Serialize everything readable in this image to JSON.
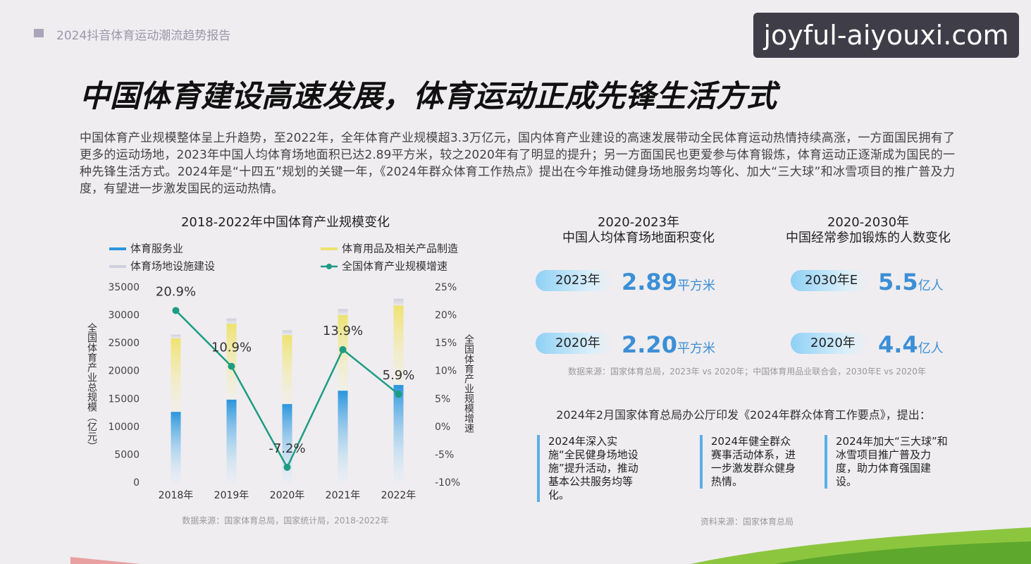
{
  "header": {
    "report": "2024抖音体育运动潮流趋势报告",
    "watermark": "joyful-aiyouxi.com",
    "title": "中国体育建设高速发展，体育运动正成先锋生活方式",
    "paragraph": "中国体育产业规模整体呈上升趋势，至2022年，全年体育产业规模超3.3万亿元，国内体育产业建设的高速发展带动全民体育运动热情持续高涨，一方面国民拥有了更多的运动场地，2023年中国人均体育场地面积已达2.89平方米，较之2020年有了明显的提升；另一方面国民也更爱参与体育锻炼，体育运动正逐渐成为国民的一种先锋生活方式。2024年是“十四五”规划的关键一年，《2024年群众体育工作热点》提出在今年推动健身场地服务均等化、加大“三大球”和冰雪项目的推广普及力度，有望进一步激发国民的运动热情。"
  },
  "chart_data": {
    "type": "bar",
    "title": "2018-2022年中国体育产业规模变化",
    "categories": [
      "2018年",
      "2019年",
      "2020年",
      "2021年",
      "2022年"
    ],
    "series": [
      {
        "name": "体育服务业",
        "color": "#2a95dd",
        "values": [
          12732,
          14930,
          14136,
          16527,
          17555
        ]
      },
      {
        "name": "体育用品及相关产品制造",
        "color": "#eee270",
        "values": [
          13201,
          13614,
          12372,
          13585,
          14260
        ]
      },
      {
        "name": "体育场地设施建设",
        "color": "#cfd0dd",
        "values": [
          646,
          939,
          864,
          1062,
          1193
        ]
      },
      {
        "name": "全国体育产业规模增速",
        "color": "#1e9c83",
        "type": "line",
        "axis": "y2",
        "values": [
          20.9,
          10.9,
          -7.2,
          13.9,
          5.9
        ],
        "value_labels": [
          "20.9%",
          "10.9%",
          "-7.2%",
          "13.9%",
          "5.9%"
        ]
      }
    ],
    "ylabel": "全国体育产业总规模（亿元）",
    "y2label": "全国体育产业规模增速",
    "ylim": [
      0,
      35000
    ],
    "yticks": [
      0,
      5000,
      10000,
      15000,
      20000,
      25000,
      30000,
      35000
    ],
    "y2lim": [
      -10,
      25
    ],
    "y2ticks": [
      {
        "value": -10,
        "label": "-10%"
      },
      {
        "value": -5,
        "label": "-5%"
      },
      {
        "value": 0,
        "label": "0%"
      },
      {
        "value": 5,
        "label": "5%"
      },
      {
        "value": 10,
        "label": "10%"
      },
      {
        "value": 15,
        "label": "15%"
      },
      {
        "value": 20,
        "label": "20%"
      },
      {
        "value": 25,
        "label": "25%"
      }
    ],
    "source": "数据来源：国家体育总局，国家统计局，2018-2022年"
  },
  "stats": [
    {
      "title": [
        "2020-2023年",
        "中国人均体育场地面积变化"
      ],
      "items": [
        {
          "label": "2023年",
          "value": "2.89",
          "unit": "平方米"
        },
        {
          "label": "2020年",
          "value": "2.20",
          "unit": "平方米"
        }
      ]
    },
    {
      "title": [
        "2020-2030年",
        "中国经常参加锻炼的人数变化"
      ],
      "items": [
        {
          "label": "2030年E",
          "value": "5.5",
          "unit": "亿人"
        },
        {
          "label": "2020年",
          "value": "4.4",
          "unit": "亿人"
        }
      ]
    }
  ],
  "stats_source": "数据来源：国家体育总局，2023年 vs 2020年；中国体育用品业联合会，2030年E vs 2020年",
  "notice": {
    "heading": "2024年2月国家体育总局办公厅印发《2024年群众体育工作要点》，提出：",
    "items": [
      "2024年深入实施“全民健身场地设施”提升活动，推动基本公共服务均等化。",
      "2024年健全群众赛事活动体系，进一步激发群众健身热情。",
      "2024年加大“三大球”和冰雪项目推广普及力度，助力体育强国建设。"
    ],
    "source": "资料来源：国家体育总局"
  }
}
